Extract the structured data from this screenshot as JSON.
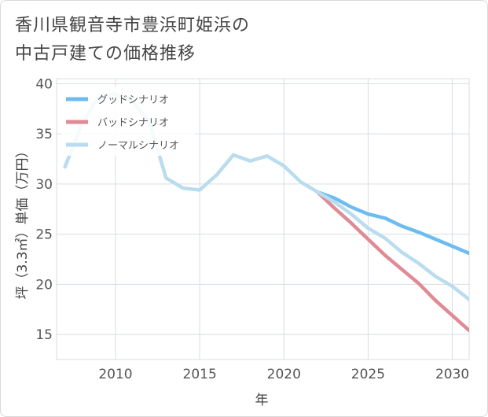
{
  "title_lines": [
    "香川県観音寺市豊浜町姫浜の",
    "中古戸建ての価格推移"
  ],
  "chart_data": {
    "type": "line",
    "xlabel": "年",
    "ylabel": "坪（3.3㎡）単価（万円）",
    "xlim": [
      2006.5,
      2031
    ],
    "ylim": [
      12.5,
      40.5
    ],
    "xticks": [
      2010,
      2015,
      2020,
      2025,
      2030
    ],
    "yticks": [
      15,
      20,
      25,
      30,
      35,
      40
    ],
    "grid": true,
    "legend_position": "top-left",
    "series": [
      {
        "name": "グッドシナリオ",
        "color": "#6cbcf0",
        "x": [
          2022,
          2023,
          2024,
          2025,
          2026,
          2027,
          2028,
          2029,
          2030,
          2031
        ],
        "y": [
          29.2,
          28.6,
          27.7,
          27.0,
          26.6,
          25.8,
          25.2,
          24.5,
          23.8,
          23.1
        ]
      },
      {
        "name": "バッドシナリオ",
        "color": "#e08a94",
        "x": [
          2022,
          2023,
          2024,
          2025,
          2026,
          2027,
          2028,
          2029,
          2030,
          2031
        ],
        "y": [
          29.2,
          27.6,
          26.1,
          24.5,
          22.9,
          21.5,
          20.1,
          18.4,
          16.9,
          15.4
        ]
      },
      {
        "name": "ノーマルシナリオ",
        "color": "#b9dcee",
        "x": [
          2007,
          2008,
          2009,
          2010,
          2011,
          2012,
          2013,
          2014,
          2015,
          2016,
          2017,
          2018,
          2019,
          2020,
          2021,
          2022,
          2023,
          2024,
          2025,
          2026,
          2027,
          2028,
          2029,
          2030,
          2031
        ],
        "y": [
          31.7,
          36.0,
          38.7,
          39.0,
          38.2,
          36.3,
          30.6,
          29.6,
          29.4,
          30.9,
          32.9,
          32.3,
          32.8,
          31.8,
          30.2,
          29.2,
          28.2,
          27.0,
          25.6,
          24.6,
          23.2,
          22.1,
          20.8,
          19.8,
          18.5
        ]
      }
    ]
  }
}
